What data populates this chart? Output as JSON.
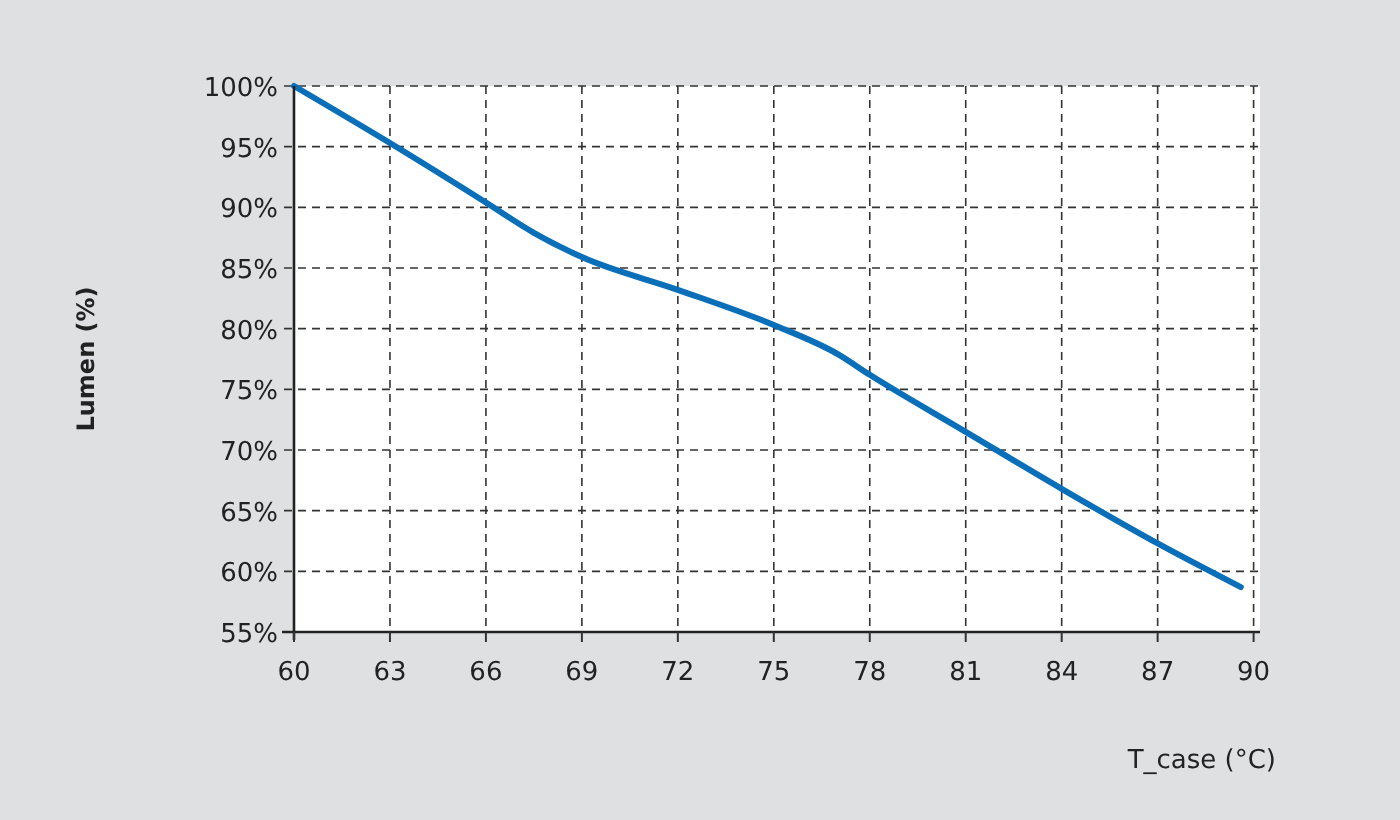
{
  "chart_data": {
    "type": "line",
    "xlabel": "T_case (°C)",
    "ylabel": "Lumen (%)",
    "x": [
      60,
      63,
      66,
      67.5,
      69,
      72,
      75,
      77,
      78,
      81,
      84,
      87,
      89.6
    ],
    "series": [
      {
        "color": "#0a6fb9",
        "values": [
          100,
          95.3,
          90.4,
          87.9,
          85.9,
          83.2,
          80.3,
          77.9,
          76.2,
          71.5,
          66.8,
          62.3,
          58.7
        ]
      }
    ],
    "xlim": [
      60,
      90.2
    ],
    "xticks": [
      60,
      63,
      66,
      69,
      72,
      75,
      78,
      81,
      84,
      87,
      90
    ],
    "ylim": [
      55,
      100
    ],
    "yticks": [
      {
        "value": 55,
        "label": "55%"
      },
      {
        "value": 60,
        "label": "60%"
      },
      {
        "value": 65,
        "label": "65%"
      },
      {
        "value": 70,
        "label": "70%"
      },
      {
        "value": 75,
        "label": "75%"
      },
      {
        "value": 80,
        "label": "80%"
      },
      {
        "value": 85,
        "label": "85%"
      },
      {
        "value": 90,
        "label": "90%"
      },
      {
        "value": 95,
        "label": "95%"
      },
      {
        "value": 100,
        "label": "100%"
      }
    ],
    "grid": true,
    "marker": "none",
    "line_style": "solid"
  }
}
